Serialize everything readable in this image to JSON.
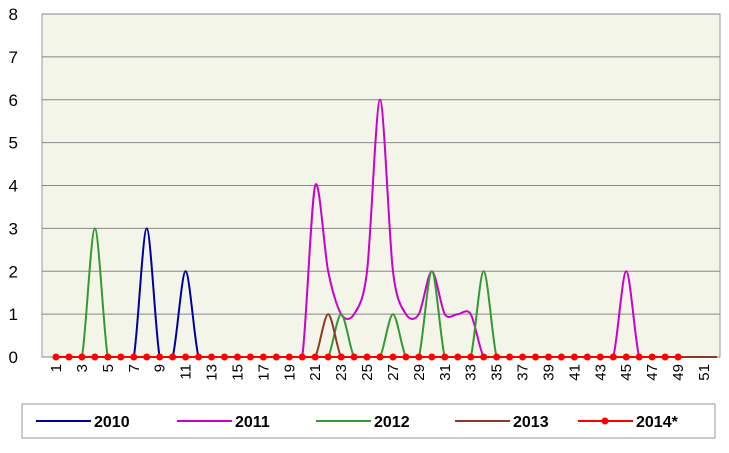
{
  "chart_data": {
    "type": "line",
    "categories": [
      "1",
      null,
      "3",
      null,
      "5",
      null,
      "7",
      null,
      "9",
      null,
      "11",
      null,
      "13",
      null,
      "15",
      null,
      "17",
      null,
      "19",
      null,
      "21",
      null,
      "23",
      null,
      "25",
      null,
      "27",
      null,
      "29",
      null,
      "31",
      null,
      "33",
      null,
      "35",
      null,
      "37",
      null,
      "39",
      null,
      "41",
      null,
      "43",
      null,
      "45",
      null,
      "47",
      null,
      "49",
      null,
      "51",
      null
    ],
    "series": [
      {
        "name": "2010",
        "color": "#0000a0",
        "values": [
          0,
          0,
          0,
          0,
          0,
          0,
          0,
          3,
          0,
          0,
          2,
          0,
          0,
          0,
          0,
          0,
          0,
          0,
          0,
          0,
          0,
          0,
          0,
          0,
          0,
          0,
          0,
          0,
          0,
          0,
          0,
          0,
          0,
          0,
          0,
          0,
          0,
          0,
          0,
          0,
          0,
          0,
          0,
          0,
          0,
          0,
          0,
          0,
          0,
          0,
          0,
          0
        ]
      },
      {
        "name": "2011",
        "color": "#cc00cc",
        "values": [
          0,
          0,
          0,
          0,
          0,
          0,
          0,
          0,
          0,
          0,
          0,
          0,
          0,
          0,
          0,
          0,
          0,
          0,
          0,
          0,
          4,
          2,
          1,
          1,
          2,
          6,
          2,
          1,
          1,
          2,
          1,
          1,
          1,
          0,
          0,
          0,
          0,
          0,
          0,
          0,
          0,
          0,
          0,
          0,
          2,
          0,
          0,
          0,
          0,
          0,
          0,
          0
        ]
      },
      {
        "name": "2012",
        "color": "#339933",
        "values": [
          0,
          0,
          0,
          3,
          0,
          0,
          0,
          0,
          0,
          0,
          0,
          0,
          0,
          0,
          0,
          0,
          0,
          0,
          0,
          0,
          0,
          0,
          1,
          0,
          0,
          0,
          1,
          0,
          0,
          2,
          0,
          0,
          0,
          2,
          0,
          0,
          0,
          0,
          0,
          0,
          0,
          0,
          0,
          0,
          0,
          0,
          0,
          0,
          0,
          0,
          0,
          0
        ]
      },
      {
        "name": "2013",
        "color": "#8b3a2a",
        "values": [
          0,
          0,
          0,
          0,
          0,
          0,
          0,
          0,
          0,
          0,
          0,
          0,
          0,
          0,
          0,
          0,
          0,
          0,
          0,
          0,
          0,
          1,
          0,
          0,
          0,
          0,
          0,
          0,
          0,
          0,
          0,
          0,
          0,
          0,
          0,
          0,
          0,
          0,
          0,
          0,
          0,
          0,
          0,
          0,
          0,
          0,
          0,
          0,
          0,
          0,
          0,
          0
        ]
      },
      {
        "name": "2014*",
        "color": "#ff0000",
        "markers": true,
        "values": [
          0,
          0,
          0,
          0,
          0,
          0,
          0,
          0,
          0,
          0,
          0,
          0,
          0,
          0,
          0,
          0,
          0,
          0,
          0,
          0,
          0,
          0,
          0,
          0,
          0,
          0,
          0,
          0,
          0,
          0,
          0,
          0,
          0,
          0,
          0,
          0,
          0,
          0,
          0,
          0,
          0,
          0,
          0,
          0,
          0,
          0,
          0,
          0,
          0,
          null,
          null,
          null
        ]
      }
    ],
    "ylim": [
      0,
      8
    ],
    "yticks": [
      0,
      1,
      2,
      3,
      4,
      5,
      6,
      7,
      8
    ],
    "grid": true
  }
}
